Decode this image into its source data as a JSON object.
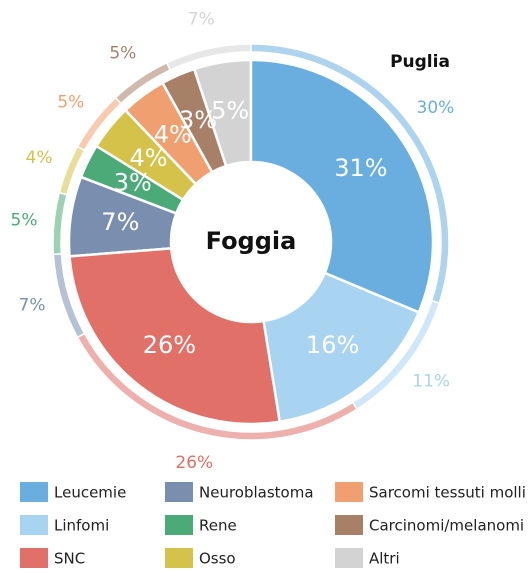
{
  "chart_data": {
    "type": "pie",
    "categories": [
      "Leucemie",
      "Linfomi",
      "SNC",
      "Neuroblastoma",
      "Rene",
      "Osso",
      "Sarcomi tessuti molli",
      "Carcinomi/melanomi",
      "Altri"
    ],
    "colors": [
      "#6aaee0",
      "#a8d4f2",
      "#e07068",
      "#7a8fb0",
      "#4caa78",
      "#d4c24a",
      "#f0a070",
      "#a88068",
      "#d3d3d3"
    ],
    "series": [
      {
        "name": "Foggia",
        "values": [
          31,
          16,
          26,
          7,
          3,
          4,
          4,
          3,
          5
        ],
        "value_labels": [
          "31%",
          "16%",
          "26%",
          "7%",
          "3%",
          "4%",
          "4%",
          "3%",
          "5%"
        ]
      },
      {
        "name": "Puglia",
        "values": [
          30,
          11,
          26,
          7,
          5,
          4,
          5,
          5,
          7
        ],
        "value_labels": [
          "30%",
          "11%",
          "26%",
          "7%",
          "5%",
          "4%",
          "5%",
          "5%",
          "7%"
        ]
      }
    ]
  }
}
